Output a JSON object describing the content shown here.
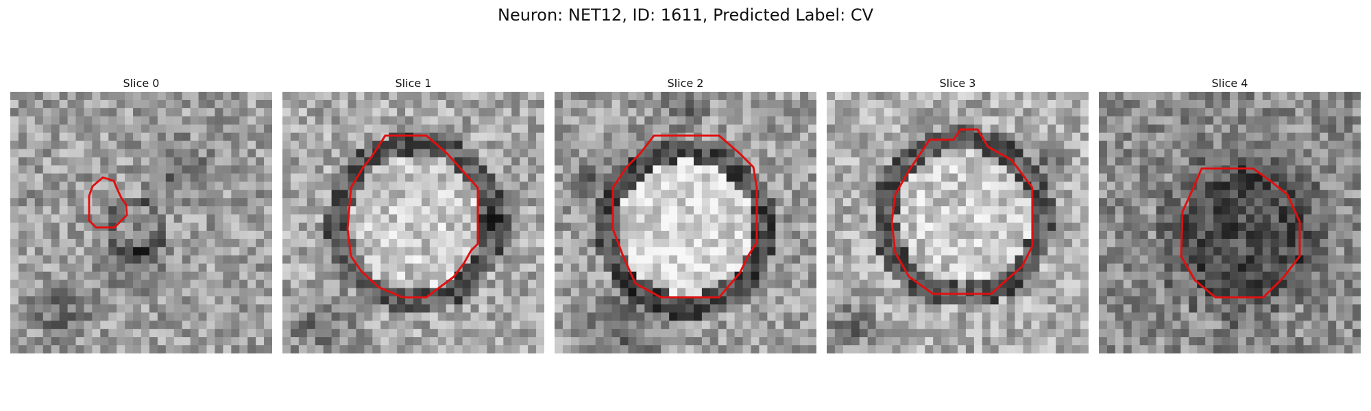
{
  "figure": {
    "title": "Neuron: NET12, ID: 1611, Predicted Label: CV",
    "contour_color": "#e01010",
    "colormap": "grayscale"
  },
  "panels": [
    {
      "title": "Slice 0",
      "contour_shape": "small-polygon",
      "center_tone": "mixed"
    },
    {
      "title": "Slice 1",
      "contour_shape": "octagon",
      "center_tone": "light"
    },
    {
      "title": "Slice 2",
      "contour_shape": "octagon",
      "center_tone": "light"
    },
    {
      "title": "Slice 3",
      "contour_shape": "octagon",
      "center_tone": "light"
    },
    {
      "title": "Slice 4",
      "contour_shape": "octagon",
      "center_tone": "dark"
    }
  ]
}
